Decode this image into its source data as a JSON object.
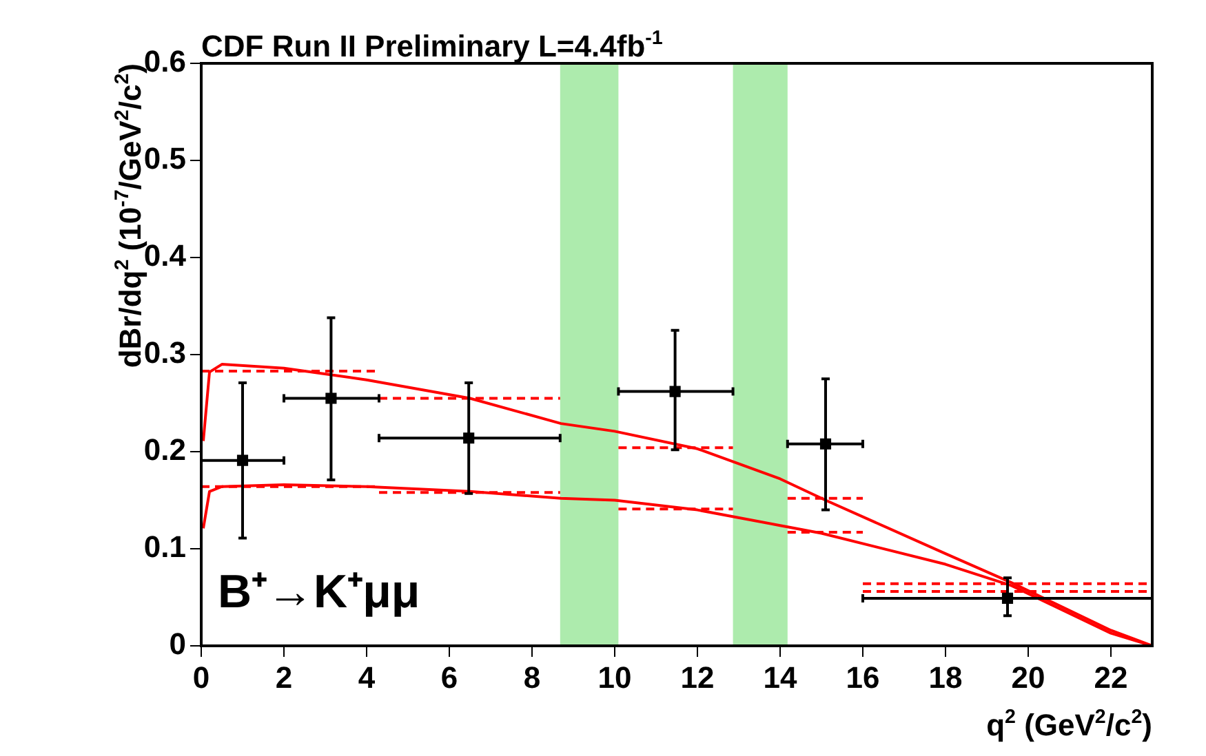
{
  "chart_data": {
    "type": "scatter",
    "title": "CDF Run II Preliminary L=4.4fb$^{-1}$",
    "xlabel": "q$^{2}$ (GeV$^{2}$/c$^{2}$)",
    "ylabel": "dBr/dq$^{2}$ (10$^{-7}$/GeV$^{2}$/c$^{2}$)",
    "xlim": [
      0,
      23
    ],
    "ylim": [
      0,
      0.6
    ],
    "xticks": [
      0,
      2,
      4,
      6,
      8,
      10,
      12,
      14,
      16,
      18,
      20,
      22
    ],
    "yticks": [
      0,
      0.1,
      0.2,
      0.3,
      0.4,
      0.5,
      0.6
    ],
    "grid": false,
    "legend": false,
    "annotations": [
      "B⁺→K⁺μμ"
    ],
    "bands": [
      {
        "axis": "x",
        "from": 8.68,
        "to": 10.09,
        "color": "#33cc33"
      },
      {
        "axis": "x",
        "from": 12.86,
        "to": 14.18,
        "color": "#33cc33"
      }
    ],
    "series": [
      {
        "type": "line",
        "color": "#ff0000",
        "marker": "none",
        "line_style": "solid",
        "x": [
          0.05,
          0.2,
          0.5,
          2,
          4,
          6.5,
          8.7,
          10,
          12,
          14,
          15.1,
          18,
          19.6,
          22,
          23
        ],
        "values": [
          0.211,
          0.282,
          0.29,
          0.286,
          0.274,
          0.255,
          0.229,
          0.221,
          0.203,
          0.172,
          0.15,
          0.095,
          0.065,
          0.016,
          0
        ]
      },
      {
        "type": "line",
        "color": "#ff0000",
        "marker": "none",
        "line_style": "solid",
        "x": [
          0.05,
          0.2,
          0.5,
          2,
          4,
          6.5,
          8.7,
          10,
          12,
          14,
          15,
          18,
          19.6,
          22,
          23
        ],
        "values": [
          0.121,
          0.159,
          0.164,
          0.166,
          0.164,
          0.159,
          0.152,
          0.15,
          0.14,
          0.124,
          0.116,
          0.084,
          0.062,
          0.013,
          0
        ]
      },
      {
        "type": "line",
        "color": "#ff0000",
        "marker": "none",
        "line_style": "dashed",
        "x": [
          0,
          4.3
        ],
        "values": [
          0.283,
          0.283
        ]
      },
      {
        "type": "line",
        "color": "#ff0000",
        "marker": "none",
        "line_style": "dashed",
        "x": [
          4.3,
          8.68
        ],
        "values": [
          0.255,
          0.255
        ]
      },
      {
        "type": "line",
        "color": "#ff0000",
        "marker": "none",
        "line_style": "dashed",
        "x": [
          10.09,
          12.86
        ],
        "values": [
          0.204,
          0.204
        ]
      },
      {
        "type": "line",
        "color": "#ff0000",
        "marker": "none",
        "line_style": "dashed",
        "x": [
          14.18,
          16
        ],
        "values": [
          0.152,
          0.152
        ]
      },
      {
        "type": "line",
        "color": "#ff0000",
        "marker": "none",
        "line_style": "dashed",
        "x": [
          16,
          23
        ],
        "values": [
          0.064,
          0.064
        ]
      },
      {
        "type": "line",
        "color": "#ff0000",
        "marker": "none",
        "line_style": "dashed",
        "x": [
          0,
          4.3
        ],
        "values": [
          0.164,
          0.164
        ]
      },
      {
        "type": "line",
        "color": "#ff0000",
        "marker": "none",
        "line_style": "dashed",
        "x": [
          4.3,
          8.68
        ],
        "values": [
          0.158,
          0.158
        ]
      },
      {
        "type": "line",
        "color": "#ff0000",
        "marker": "none",
        "line_style": "dashed",
        "x": [
          10.09,
          12.86
        ],
        "values": [
          0.141,
          0.141
        ]
      },
      {
        "type": "line",
        "color": "#ff0000",
        "marker": "none",
        "line_style": "dashed",
        "x": [
          14.18,
          16
        ],
        "values": [
          0.117,
          0.117
        ]
      },
      {
        "type": "line",
        "color": "#ff0000",
        "marker": "none",
        "line_style": "dashed",
        "x": [
          16,
          23
        ],
        "values": [
          0.056,
          0.056
        ]
      },
      {
        "color": "#000000",
        "marker": "square",
        "x": [
          1.0,
          3.14,
          6.47,
          11.46,
          15.1,
          19.5
        ],
        "values": [
          0.191,
          0.255,
          0.214,
          0.262,
          0.208,
          0.049
        ],
        "errors": [
          [
            0.111,
            0.271
          ],
          [
            0.171,
            0.338
          ],
          [
            0.157,
            0.271
          ],
          [
            0.202,
            0.325
          ],
          [
            0.14,
            0.275
          ],
          [
            0.031,
            0.07
          ]
        ],
        "xerrors": [
          [
            0,
            2
          ],
          [
            2,
            4.3
          ],
          [
            4.3,
            8.68
          ],
          [
            10.09,
            12.86
          ],
          [
            14.18,
            16
          ],
          [
            16,
            23
          ]
        ]
      }
    ]
  }
}
